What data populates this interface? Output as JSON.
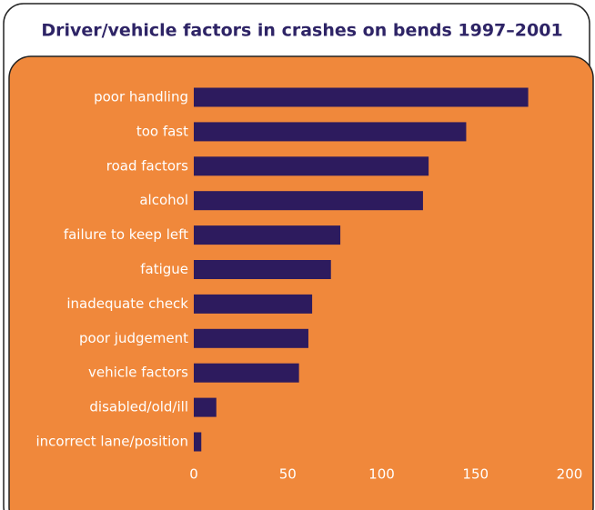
{
  "chart_data": {
    "type": "barh",
    "title": "Driver/vehicle factors in crashes on bends 1997–2001",
    "categories": [
      "poor handling",
      "too fast",
      "road factors",
      "alcohol",
      "failure to keep left",
      "fatigue",
      "inadequate check",
      "poor judgement",
      "vehicle factors",
      "disabled/old/ill",
      "incorrect lane/position"
    ],
    "values": [
      178,
      145,
      125,
      122,
      78,
      73,
      63,
      61,
      56,
      12,
      4
    ],
    "color": "#2d1b5e",
    "xlim": [
      0,
      200
    ],
    "xticks": [
      0,
      50,
      100,
      150,
      200
    ],
    "grid": false
  }
}
